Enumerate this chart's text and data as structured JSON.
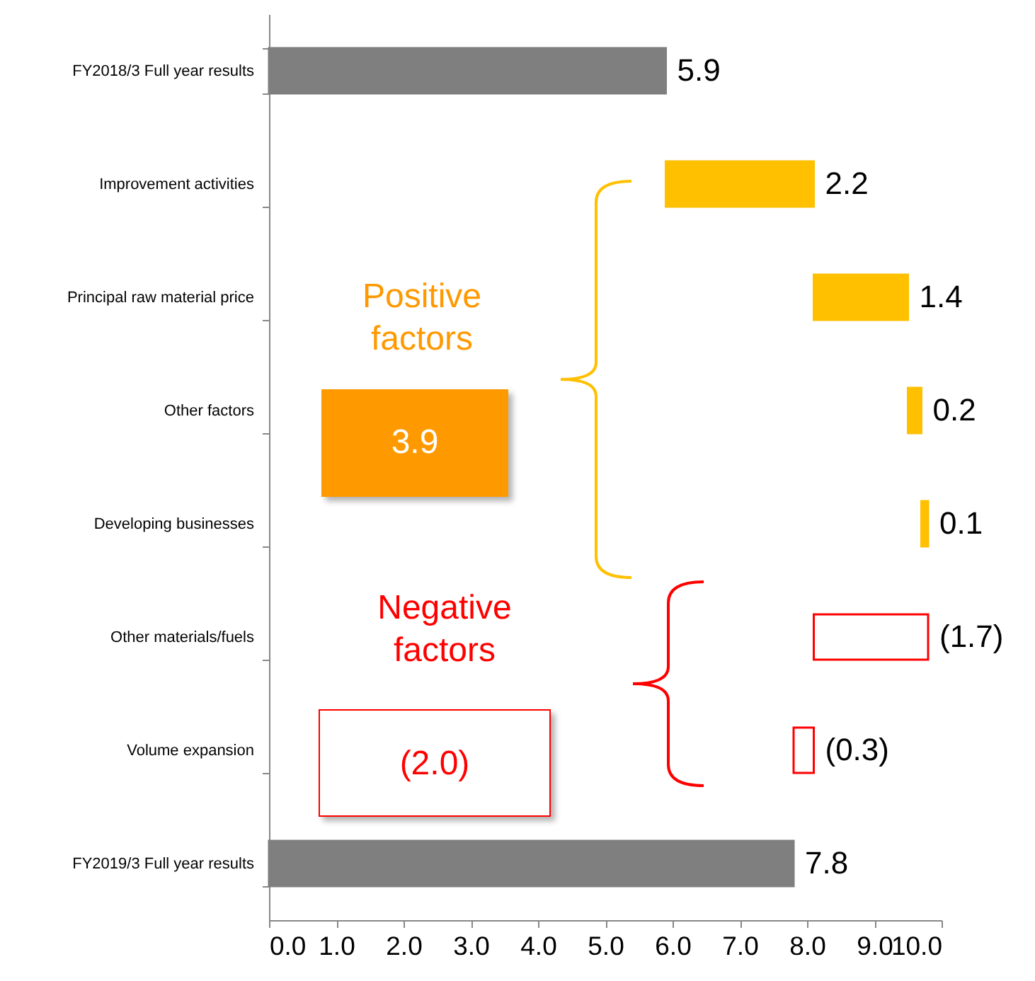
{
  "chart_data": {
    "type": "bar",
    "orientation": "horizontal",
    "categories": [
      "FY2018/3 Full year results",
      "Improvement activities",
      "Principal raw material price",
      "Other factors",
      "Developing businesses",
      "Other materials/fuels",
      "Volume expansion",
      "FY2019/3 Full year results"
    ],
    "values": [
      5.9,
      2.2,
      1.4,
      0.2,
      0.1,
      -1.7,
      -0.3,
      7.8
    ],
    "base": [
      0,
      5.9,
      8.1,
      9.5,
      9.7,
      9.8,
      8.1,
      0
    ],
    "colors": [
      "#7f7f7f",
      "#ffc000",
      "#ffc000",
      "#ffc000",
      "#ffc000",
      "#ff0000",
      "#ff0000",
      "#7f7f7f"
    ],
    "value_labels": [
      "5.9",
      "2.2",
      "1.4",
      "0.2",
      "0.1",
      "(1.7)",
      "(0.3)",
      "7.8"
    ],
    "xlim": [
      0,
      10
    ],
    "xticks": [
      {
        "value": 0,
        "label": "0.0"
      },
      {
        "value": 1,
        "label": "1.0"
      },
      {
        "value": 2,
        "label": "2.0"
      },
      {
        "value": 3,
        "label": "3.0"
      },
      {
        "value": 4,
        "label": "4.0"
      },
      {
        "value": 5,
        "label": "5.0"
      },
      {
        "value": 6,
        "label": "6.0"
      },
      {
        "value": 7,
        "label": "7.0"
      },
      {
        "value": 8,
        "label": "8.0"
      },
      {
        "value": 9,
        "label": "9.0"
      },
      {
        "value": 10,
        "label": "10.0"
      }
    ],
    "grid": false,
    "annotations": [
      "Positive factors",
      "3.9",
      "Negative factors",
      "(2.0)"
    ]
  }
}
